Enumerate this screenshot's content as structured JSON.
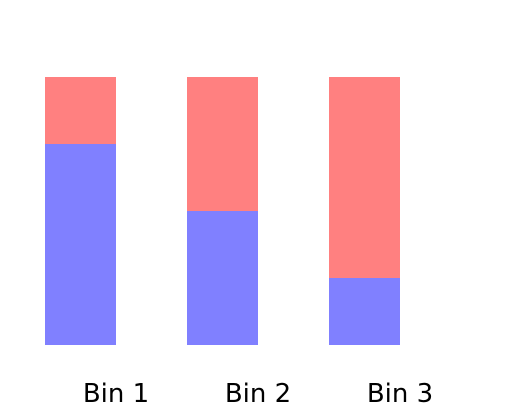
{
  "chart_data": {
    "type": "bar",
    "stacked": true,
    "categories": [
      "Bin 1",
      "Bin 2",
      "Bin 3"
    ],
    "series": [
      {
        "values": [
          0.75,
          0.5,
          0.25
        ],
        "color": "#8080ff"
      },
      {
        "values": [
          0.25,
          0.5,
          0.75
        ],
        "color": "#ff8080"
      }
    ],
    "ylim": [
      0,
      1
    ],
    "grid": false,
    "legend": "none",
    "axes_visible": false
  }
}
